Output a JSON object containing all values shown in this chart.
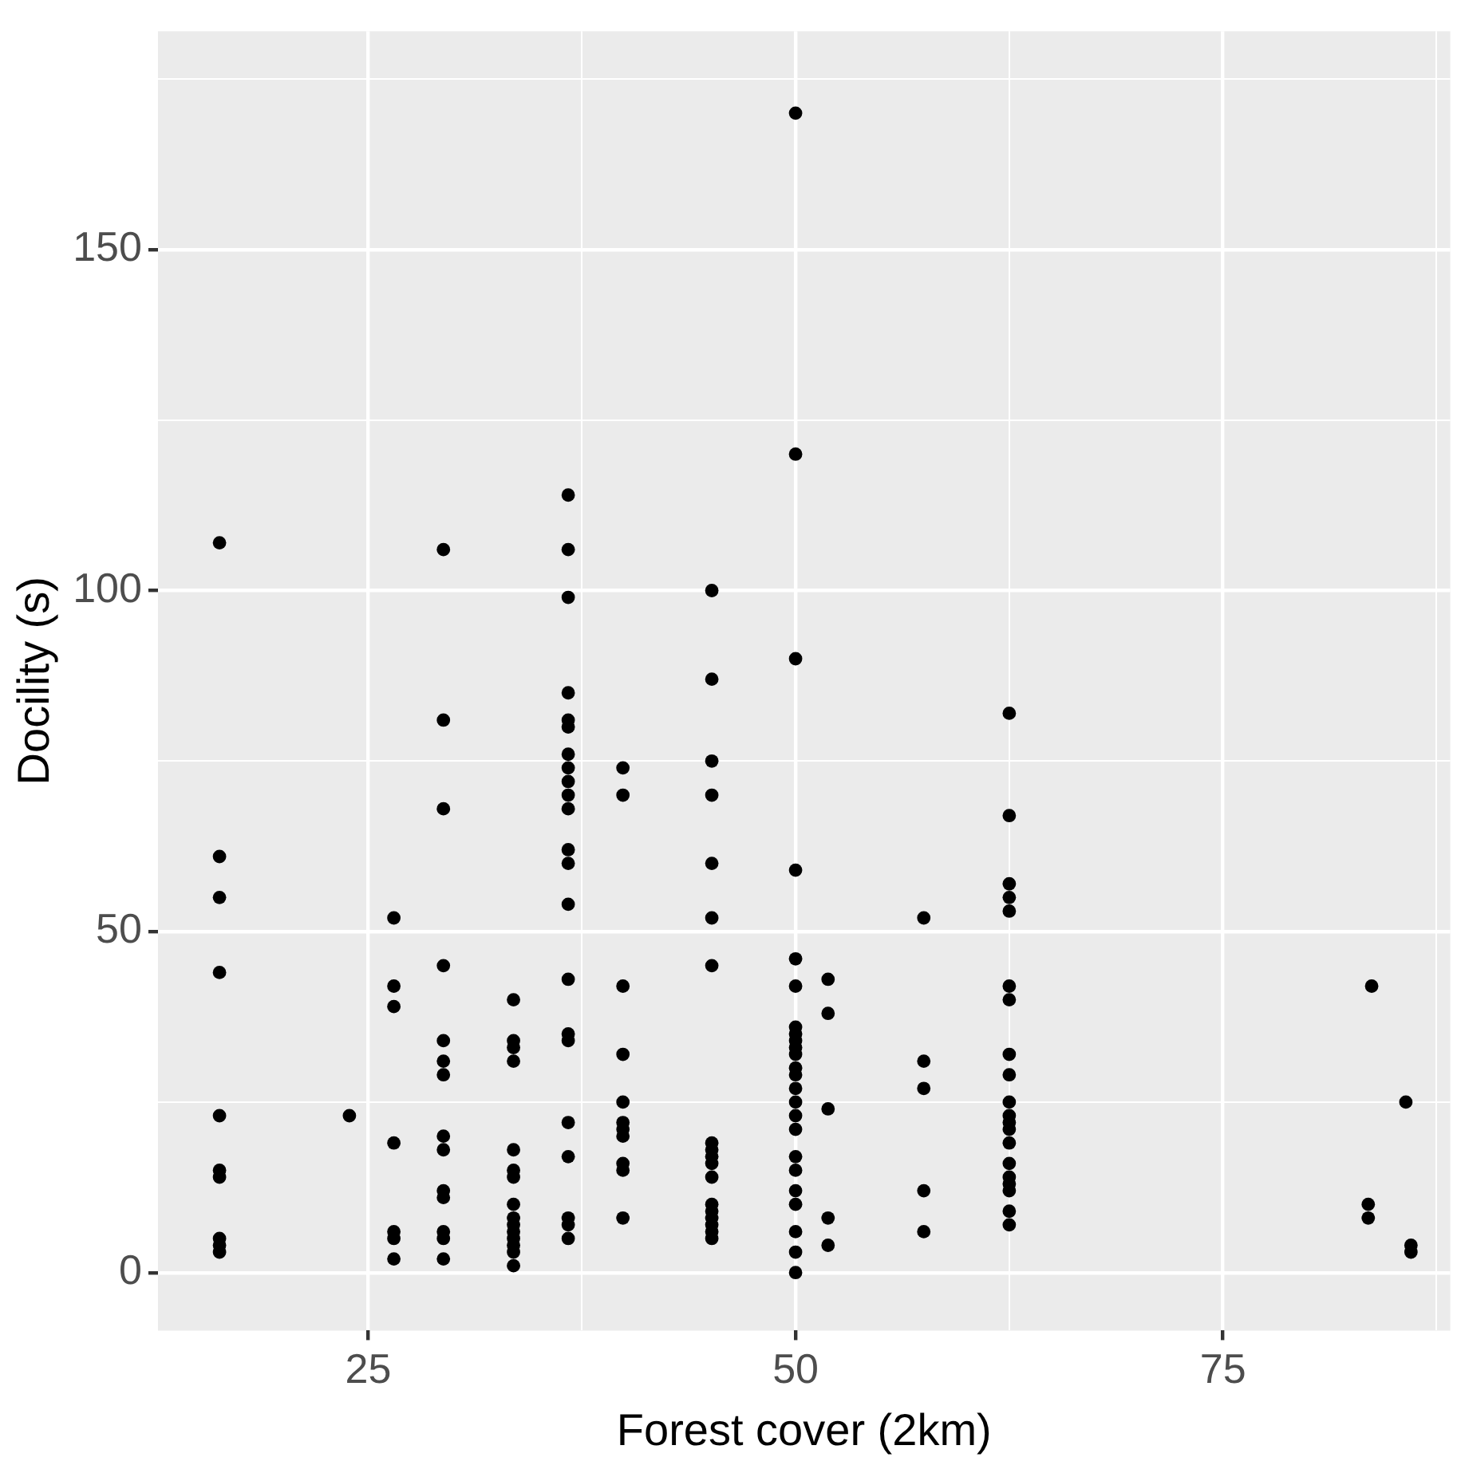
{
  "chart_data": {
    "type": "scatter",
    "xlabel": "Forest cover (2km)",
    "ylabel": "Docility (s)",
    "xlim": [
      12.7,
      88.3
    ],
    "ylim": [
      -8.5,
      182
    ],
    "xticks": [
      25,
      {
        "value": 37.5,
        "label": null
      },
      50,
      {
        "value": 62.5,
        "label": null
      },
      75,
      {
        "value": 87.5,
        "label": null
      }
    ],
    "yticks": [
      0,
      {
        "value": 25,
        "label": null
      },
      50,
      {
        "value": 75,
        "label": null
      },
      100,
      {
        "value": 125,
        "label": null
      },
      150,
      {
        "value": 175,
        "label": null
      }
    ],
    "grid": true,
    "legend": false,
    "marker": "circle",
    "series": [
      {
        "color": "#000000",
        "x": [
          16.3,
          16.3,
          16.3,
          16.3,
          16.3,
          16.3,
          16.3,
          16.3,
          16.3,
          16.3,
          23.9,
          26.5,
          26.5,
          26.5,
          26.5,
          26.5,
          26.5,
          26.5,
          29.4,
          29.4,
          29.4,
          29.4,
          29.4,
          29.4,
          29.4,
          29.4,
          29.4,
          29.4,
          29.4,
          29.4,
          29.4,
          29.4,
          33.5,
          33.5,
          33.5,
          33.5,
          33.5,
          33.5,
          33.5,
          33.5,
          33.5,
          33.5,
          33.5,
          33.5,
          33.5,
          33.5,
          33.5,
          36.7,
          36.7,
          36.7,
          36.7,
          36.7,
          36.7,
          36.7,
          36.7,
          36.7,
          36.7,
          36.7,
          36.7,
          36.7,
          36.7,
          36.7,
          36.7,
          36.7,
          36.7,
          36.7,
          36.7,
          36.7,
          36.7,
          39.9,
          39.9,
          39.9,
          39.9,
          39.9,
          39.9,
          39.9,
          39.9,
          39.9,
          39.9,
          39.9,
          45.1,
          45.1,
          45.1,
          45.1,
          45.1,
          45.1,
          45.1,
          45.1,
          45.1,
          45.1,
          45.1,
          45.1,
          45.1,
          45.1,
          45.1,
          45.1,
          45.1,
          45.1,
          50,
          50,
          50,
          50,
          50,
          50,
          50,
          50,
          50,
          50,
          50,
          50,
          50,
          50,
          50,
          50,
          50,
          50,
          50,
          50,
          50,
          50,
          50,
          50,
          51.9,
          51.9,
          51.9,
          51.9,
          51.9,
          57.5,
          57.5,
          57.5,
          57.5,
          57.5,
          62.5,
          62.5,
          62.5,
          62.5,
          62.5,
          62.5,
          62.5,
          62.5,
          62.5,
          62.5,
          62.5,
          62.5,
          62.5,
          62.5,
          62.5,
          62.5,
          62.5,
          62.5,
          62.5,
          62.5,
          83.7,
          83.5,
          83.5,
          85.7,
          86,
          86
        ],
        "values": [
          107,
          61,
          55,
          44,
          23,
          15,
          14,
          5,
          4,
          3,
          23,
          52,
          42,
          39,
          19,
          6,
          5,
          2,
          106,
          81,
          68,
          45,
          34,
          31,
          29,
          20,
          18,
          12,
          11,
          6,
          5,
          2,
          40,
          34,
          33,
          31,
          18,
          15,
          14,
          10,
          8,
          7,
          6,
          5,
          4,
          3,
          1,
          114,
          106,
          99,
          85,
          81,
          80,
          76,
          74,
          72,
          70,
          68,
          62,
          60,
          54,
          43,
          35,
          34,
          22,
          17,
          8,
          7,
          5,
          74,
          70,
          42,
          32,
          25,
          22,
          21,
          20,
          16,
          15,
          8,
          100,
          87,
          75,
          70,
          60,
          52,
          45,
          19,
          18,
          17,
          16,
          14,
          10,
          9,
          8,
          7,
          6,
          5,
          170,
          120,
          90,
          59,
          46,
          42,
          36,
          35,
          34,
          33,
          32,
          30,
          29,
          27,
          25,
          23,
          21,
          17,
          15,
          12,
          10,
          6,
          3,
          0,
          43,
          38,
          24,
          8,
          4,
          52,
          31,
          27,
          12,
          6,
          82,
          67,
          57,
          55,
          53,
          42,
          40,
          32,
          29,
          25,
          23,
          22,
          21,
          19,
          16,
          14,
          13,
          12,
          9,
          7,
          42,
          10,
          8,
          25,
          4,
          3
        ]
      }
    ]
  }
}
